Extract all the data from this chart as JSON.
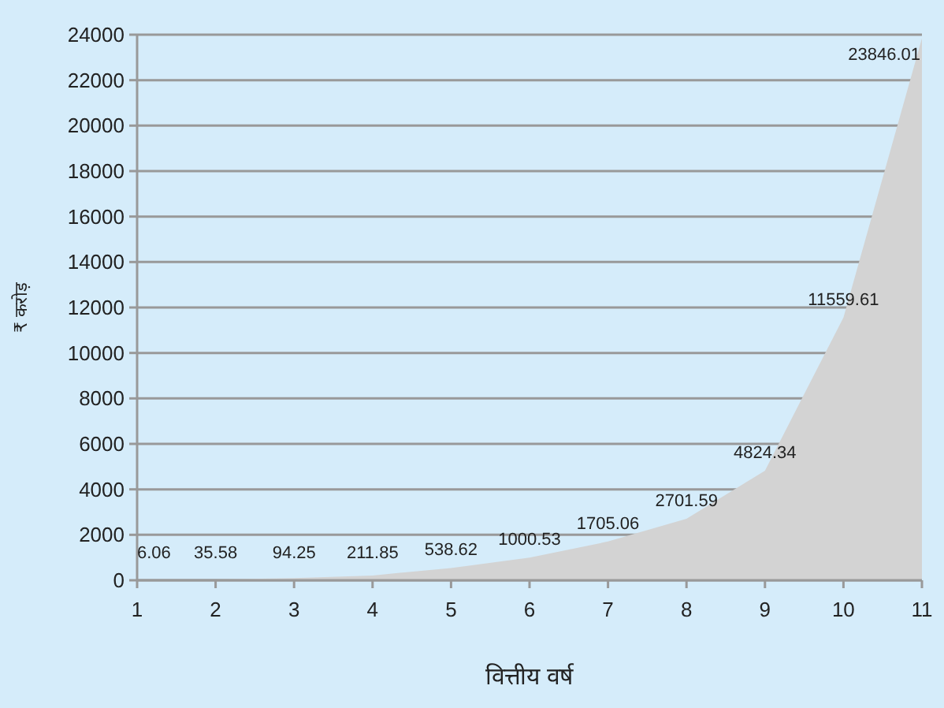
{
  "chart_data": {
    "type": "area",
    "xlabel": "वित्तीय वर्ष",
    "ylabel": "₹ करोड़",
    "x": [
      1,
      2,
      3,
      4,
      5,
      6,
      7,
      8,
      9,
      10,
      11
    ],
    "values": [
      6.06,
      35.58,
      94.25,
      211.85,
      538.62,
      1000.53,
      1705.06,
      2701.59,
      4824.34,
      11559.61,
      23846.01
    ],
    "color": "#d3d3d3",
    "data_labels": true,
    "xlim": [
      1,
      11
    ],
    "xticks": [
      1,
      2,
      3,
      4,
      5,
      6,
      7,
      8,
      9,
      10,
      11
    ],
    "ylim": [
      0,
      24000
    ],
    "yticks": [
      0,
      2000,
      4000,
      6000,
      8000,
      10000,
      12000,
      14000,
      16000,
      18000,
      20000,
      22000,
      24000
    ],
    "grid": "y"
  }
}
